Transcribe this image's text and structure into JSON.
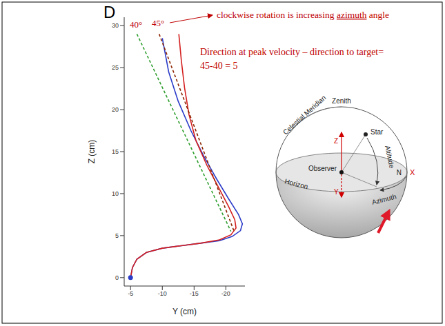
{
  "chart_data": {
    "type": "line",
    "panel_label": "D",
    "x_label": "Y (cm)",
    "y_label": "Z (cm)",
    "xlim": [
      -4,
      -23
    ],
    "xticks": [
      -5,
      -10,
      -15,
      -20
    ],
    "ylim": [
      -1,
      31
    ],
    "yticks": [
      0,
      5,
      10,
      15,
      20,
      25,
      30
    ],
    "grid": false,
    "series": [
      {
        "type": "line",
        "color": "#2b3cc8",
        "line_style": "solid",
        "x": [
          -5,
          -5.3,
          -6,
          -7.5,
          -10,
          -13,
          -16,
          -19,
          -21,
          -22.3,
          -22.6,
          -22,
          -20.5,
          -18.5,
          -16.5,
          -14.5,
          -12.5,
          -11,
          -10
        ],
        "values": [
          0,
          1.2,
          2.2,
          3,
          3.5,
          3.8,
          4.1,
          4.4,
          4.9,
          5.6,
          6.4,
          7.5,
          9.3,
          11.8,
          14.5,
          17.5,
          21,
          24.5,
          28.5
        ]
      },
      {
        "type": "line",
        "color": "#d42020",
        "line_style": "solid",
        "x": [
          -5,
          -5.3,
          -6,
          -7.5,
          -10,
          -13,
          -16,
          -19,
          -20.8,
          -21.6,
          -21.4,
          -20.4,
          -18.8,
          -17,
          -15.3,
          -14.2,
          -13.5,
          -13,
          -12.6
        ],
        "values": [
          0,
          1.2,
          2.2,
          3,
          3.5,
          3.8,
          4.1,
          4.5,
          5.1,
          5.9,
          6.9,
          8.5,
          10.8,
          13.4,
          16.3,
          19.4,
          22.6,
          25.8,
          29
        ]
      },
      {
        "type": "line",
        "color": "#2e9e2e",
        "line_style": "dashed",
        "x": [
          -6,
          -20.8
        ],
        "values": [
          29,
          5.5
        ]
      },
      {
        "type": "line",
        "color": "#8b2500",
        "line_style": "dashed",
        "x": [
          -9.5,
          -21.3
        ],
        "values": [
          29,
          5.5
        ]
      },
      {
        "type": "scatter",
        "color": "#2b3cc8",
        "marker": "circle",
        "x": [
          -5
        ],
        "values": [
          0
        ]
      }
    ],
    "annotations": [
      {
        "text": "40°",
        "color": "#c00000"
      },
      {
        "text": "45°",
        "color": "#c00000"
      },
      {
        "text": "clockwise rotation is increasing azimuth angle",
        "underline": "azimuth",
        "color": "#c00000"
      },
      {
        "lines": [
          "Direction at peak velocity – direction to target=",
          "45-40 = 5"
        ],
        "color": "#c00000"
      }
    ]
  },
  "diagram": {
    "labels": {
      "zenith": "Zenith",
      "meridian": "Celestial Meridian",
      "star": "Star",
      "observer": "Observer",
      "altitude": "Altitude",
      "horizon": "Horizon",
      "north": "N",
      "azimuth": "Azimuth"
    },
    "axes": {
      "x": "X",
      "y": "Y",
      "z": "Z"
    },
    "axes_color": "#d00000"
  }
}
